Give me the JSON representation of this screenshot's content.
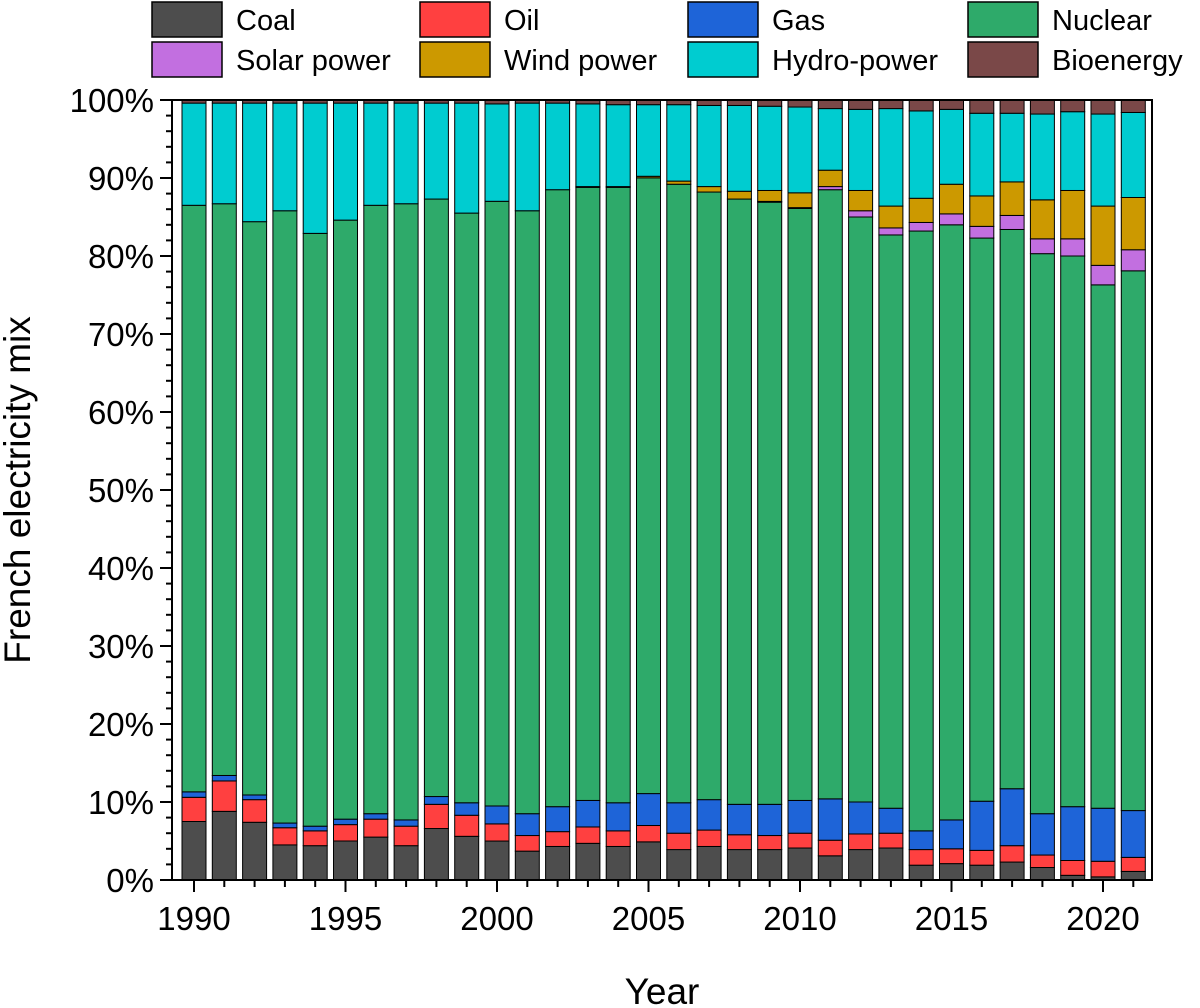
{
  "chart_data": {
    "type": "bar",
    "stacked": true,
    "xlabel": "Year",
    "ylabel": "French electricity mix",
    "ylim": [
      0,
      100
    ],
    "yticks": [
      "0%",
      "10%",
      "20%",
      "30%",
      "40%",
      "50%",
      "60%",
      "70%",
      "80%",
      "90%",
      "100%"
    ],
    "xticks": [
      "1990",
      "1995",
      "2000",
      "2005",
      "2010",
      "2015",
      "2020"
    ],
    "legend_position": "top",
    "categories": [
      "1990",
      "1991",
      "1992",
      "1993",
      "1994",
      "1995",
      "1996",
      "1997",
      "1998",
      "1999",
      "2000",
      "2001",
      "2002",
      "2003",
      "2004",
      "2005",
      "2006",
      "2007",
      "2008",
      "2009",
      "2010",
      "2011",
      "2012",
      "2013",
      "2014",
      "2015",
      "2016",
      "2017",
      "2018",
      "2019",
      "2020",
      "2021"
    ],
    "series": [
      {
        "name": "Coal",
        "color": "#4d4d4d",
        "values": [
          7.5,
          8.8,
          7.4,
          4.5,
          4.4,
          5.0,
          5.5,
          4.4,
          6.6,
          5.6,
          5.0,
          3.7,
          4.3,
          4.7,
          4.3,
          4.9,
          3.9,
          4.3,
          3.9,
          3.9,
          4.1,
          3.1,
          3.9,
          4.1,
          1.9,
          2.1,
          1.9,
          2.3,
          1.6,
          0.6,
          0.4,
          1.1
        ]
      },
      {
        "name": "Oil",
        "color": "#ff4040",
        "values": [
          3.1,
          3.9,
          2.9,
          2.2,
          1.9,
          2.1,
          2.3,
          2.5,
          3.1,
          2.7,
          2.2,
          2.0,
          1.9,
          2.1,
          2.0,
          2.1,
          2.1,
          2.1,
          1.9,
          1.8,
          1.9,
          2.0,
          2.0,
          1.9,
          2.0,
          1.9,
          1.9,
          2.1,
          1.6,
          1.9,
          2.0,
          1.8
        ]
      },
      {
        "name": "Gas",
        "color": "#1e64d8",
        "values": [
          0.7,
          0.7,
          0.6,
          0.6,
          0.6,
          0.7,
          0.7,
          0.8,
          1.0,
          1.6,
          2.3,
          2.8,
          3.2,
          3.4,
          3.6,
          4.1,
          3.9,
          3.9,
          3.9,
          4.0,
          4.2,
          5.3,
          4.1,
          3.2,
          2.4,
          3.7,
          6.3,
          7.3,
          5.3,
          6.9,
          6.8,
          6.0
        ]
      },
      {
        "name": "Nuclear",
        "color": "#2eaa6a",
        "values": [
          75.2,
          73.3,
          73.5,
          78.5,
          76.0,
          76.8,
          78.0,
          79.0,
          76.6,
          75.6,
          77.6,
          77.3,
          79.1,
          78.6,
          78.9,
          79.1,
          79.3,
          77.9,
          77.6,
          77.2,
          75.9,
          78.1,
          75.0,
          73.5,
          76.9,
          76.3,
          72.2,
          71.7,
          71.8,
          70.6,
          67.1,
          69.2
        ]
      },
      {
        "name": "Solar power",
        "color": "#c26fe0",
        "values": [
          0.0,
          0.0,
          0.0,
          0.0,
          0.0,
          0.0,
          0.0,
          0.0,
          0.0,
          0.0,
          0.0,
          0.0,
          0.0,
          0.0,
          0.0,
          0.0,
          0.0,
          0.0,
          0.0,
          0.1,
          0.1,
          0.4,
          0.8,
          0.9,
          1.1,
          1.4,
          1.5,
          1.8,
          1.9,
          2.2,
          2.5,
          2.7
        ]
      },
      {
        "name": "Wind power",
        "color": "#cc9900",
        "values": [
          0.0,
          0.0,
          0.0,
          0.0,
          0.0,
          0.0,
          0.0,
          0.0,
          0.0,
          0.0,
          0.0,
          0.0,
          0.0,
          0.1,
          0.1,
          0.2,
          0.4,
          0.7,
          1.0,
          1.4,
          1.9,
          2.1,
          2.6,
          2.8,
          3.1,
          3.8,
          3.9,
          4.3,
          5.0,
          6.2,
          7.6,
          6.7
        ]
      },
      {
        "name": "Hydro-power",
        "color": "#00ccd0",
        "values": [
          13.1,
          12.9,
          15.2,
          13.8,
          16.7,
          15.0,
          13.1,
          12.9,
          12.3,
          14.1,
          12.5,
          13.8,
          11.1,
          10.6,
          10.5,
          9.2,
          9.8,
          10.4,
          11.0,
          10.8,
          11.0,
          7.9,
          10.4,
          12.5,
          11.2,
          9.6,
          10.6,
          8.8,
          11.0,
          10.1,
          11.8,
          10.9
        ]
      },
      {
        "name": "Bioenergy",
        "color": "#7a4848",
        "values": [
          0.4,
          0.4,
          0.4,
          0.4,
          0.4,
          0.4,
          0.4,
          0.4,
          0.4,
          0.4,
          0.5,
          0.4,
          0.4,
          0.5,
          0.6,
          0.6,
          0.6,
          0.7,
          0.7,
          0.8,
          0.9,
          1.1,
          1.2,
          1.1,
          1.4,
          1.2,
          1.7,
          1.7,
          1.8,
          1.5,
          1.8,
          1.6
        ]
      }
    ]
  }
}
